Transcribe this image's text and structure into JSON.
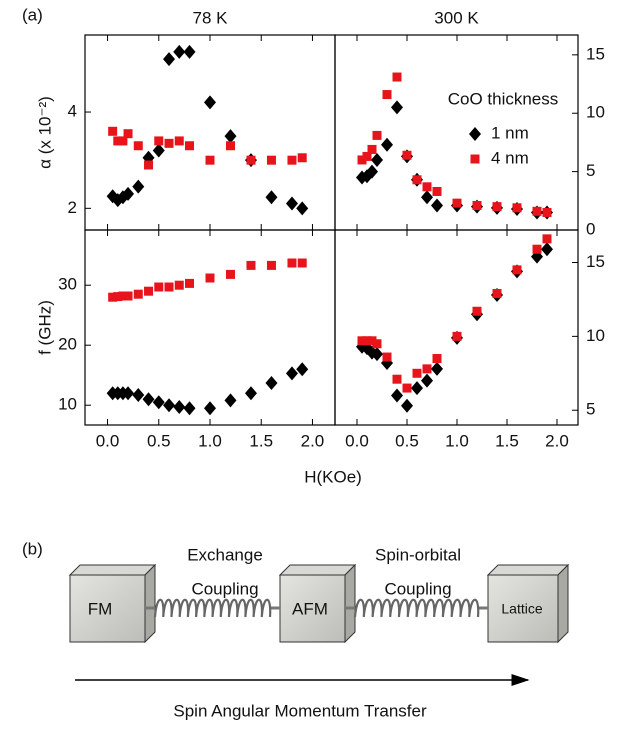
{
  "figure": {
    "panel_a": "(a)",
    "panel_b": "(b)",
    "xlabel": "H(KOe)"
  },
  "chart_data": [
    {
      "type": "scatter",
      "title": "78 K",
      "ylabel": "α (x 10⁻²)",
      "x": [
        0.05,
        0.1,
        0.15,
        0.2,
        0.3,
        0.4,
        0.5,
        0.6,
        0.7,
        0.8,
        1.0,
        1.2,
        1.4,
        1.6,
        1.8,
        1.9
      ],
      "xlim": [
        -0.22,
        2.22
      ],
      "xticks": [
        {
          "value": 0,
          "label": "0.0"
        },
        {
          "value": 0.5,
          "label": "0.5"
        },
        {
          "value": 1,
          "label": "1.0"
        },
        {
          "value": 1.5,
          "label": "1.5"
        },
        {
          "value": 2,
          "label": "2.0"
        }
      ],
      "ylim": [
        1.55,
        5.6
      ],
      "yticks": [
        2,
        4
      ],
      "series": [
        {
          "color": "#000000",
          "marker": "diamond",
          "values": [
            2.25,
            2.17,
            2.23,
            2.3,
            2.45,
            3.05,
            3.2,
            5.1,
            5.25,
            5.25,
            4.2,
            3.5,
            3.0,
            2.23,
            2.1,
            2.0
          ]
        },
        {
          "color": "#e8141c",
          "marker": "square",
          "values": [
            3.6,
            3.4,
            3.4,
            3.55,
            3.3,
            2.9,
            3.4,
            3.35,
            3.4,
            3.3,
            3.0,
            3.3,
            3.0,
            3.0,
            3.0,
            3.05
          ]
        }
      ]
    },
    {
      "type": "scatter",
      "title": "300 K",
      "legend": "upper right",
      "legend_title": "CoO thickness",
      "x": [
        0.05,
        0.1,
        0.15,
        0.2,
        0.3,
        0.4,
        0.5,
        0.6,
        0.7,
        0.8,
        1.0,
        1.2,
        1.4,
        1.6,
        1.8,
        1.9
      ],
      "xlim": [
        -0.22,
        2.21
      ],
      "xticks": [
        {
          "value": 0,
          "label": "0.0"
        },
        {
          "value": 0.5,
          "label": "0.5"
        },
        {
          "value": 1,
          "label": "1.0"
        },
        {
          "value": 1.5,
          "label": "1.5"
        },
        {
          "value": 2,
          "label": "2.0"
        }
      ],
      "ylim": [
        0,
        16.7
      ],
      "yticks": [
        0,
        5,
        10,
        15
      ],
      "series": [
        {
          "name": "1 nm",
          "color": "#000000",
          "marker": "diamond",
          "values": [
            4.5,
            4.6,
            5.0,
            6.0,
            7.3,
            10.5,
            6.3,
            4.3,
            2.8,
            2.1,
            2.1,
            2.0,
            1.9,
            1.8,
            1.5,
            1.5
          ]
        },
        {
          "name": "4 nm",
          "color": "#e8141c",
          "marker": "square",
          "values": [
            6.0,
            6.3,
            6.9,
            8.1,
            11.6,
            13.1,
            6.4,
            4.3,
            3.7,
            3.3,
            2.3,
            2.1,
            2.0,
            1.9,
            1.6,
            1.5
          ]
        }
      ]
    },
    {
      "type": "scatter",
      "ylabel": "f (GHz)",
      "x": [
        0.05,
        0.1,
        0.15,
        0.2,
        0.3,
        0.4,
        0.5,
        0.6,
        0.7,
        0.8,
        1.0,
        1.2,
        1.4,
        1.6,
        1.8,
        1.9
      ],
      "xlim": [
        -0.22,
        2.22
      ],
      "xticks": [
        {
          "value": 0,
          "label": "0.0"
        },
        {
          "value": 0.5,
          "label": "0.5"
        },
        {
          "value": 1,
          "label": "1.0"
        },
        {
          "value": 1.5,
          "label": "1.5"
        },
        {
          "value": 2,
          "label": "2.0"
        }
      ],
      "ylim": [
        6.7,
        39.2
      ],
      "yticks": [
        10,
        20,
        30
      ],
      "series": [
        {
          "color": "#000000",
          "marker": "diamond",
          "values": [
            12,
            12,
            12,
            12,
            11.7,
            11,
            10.5,
            10,
            9.7,
            9.5,
            9.5,
            10.8,
            12,
            13.7,
            15.3,
            16
          ]
        },
        {
          "color": "#e8141c",
          "marker": "square",
          "values": [
            28,
            28.1,
            28.2,
            28.2,
            28.5,
            29,
            29.7,
            29.7,
            30,
            30.3,
            31.2,
            31.8,
            33.3,
            33.3,
            33.7,
            33.7
          ]
        }
      ]
    },
    {
      "type": "scatter",
      "x": [
        0.05,
        0.1,
        0.15,
        0.2,
        0.3,
        0.4,
        0.5,
        0.6,
        0.7,
        0.8,
        1.0,
        1.2,
        1.4,
        1.6,
        1.8,
        1.9
      ],
      "xlim": [
        -0.22,
        2.21
      ],
      "xticks": [
        {
          "value": 0,
          "label": "0.0"
        },
        {
          "value": 0.5,
          "label": "0.5"
        },
        {
          "value": 1,
          "label": "1.0"
        },
        {
          "value": 1.5,
          "label": "1.5"
        },
        {
          "value": 2,
          "label": "2.0"
        }
      ],
      "ylim": [
        4,
        17.2
      ],
      "yticks": [
        5,
        10,
        15
      ],
      "series": [
        {
          "color": "#000000",
          "marker": "diamond",
          "values": [
            9.3,
            9.2,
            8.9,
            8.8,
            8.2,
            6.0,
            5.3,
            6.5,
            7.0,
            7.8,
            9.9,
            11.5,
            12.8,
            14.4,
            15.4,
            15.9
          ]
        },
        {
          "color": "#e8141c",
          "marker": "square",
          "values": [
            9.7,
            9.7,
            9.7,
            9.5,
            8.6,
            7.1,
            6.5,
            7.5,
            7.8,
            8.5,
            10.0,
            11.7,
            12.9,
            14.5,
            15.9,
            16.6
          ]
        }
      ]
    }
  ],
  "diagram": {
    "nodes": [
      "FM",
      "AFM",
      "Lattice"
    ],
    "links": [
      [
        "Exchange",
        "Coupling"
      ],
      [
        "Spin-orbital",
        "Coupling"
      ]
    ],
    "arrow_label": "Spin Angular Momentum Transfer"
  }
}
